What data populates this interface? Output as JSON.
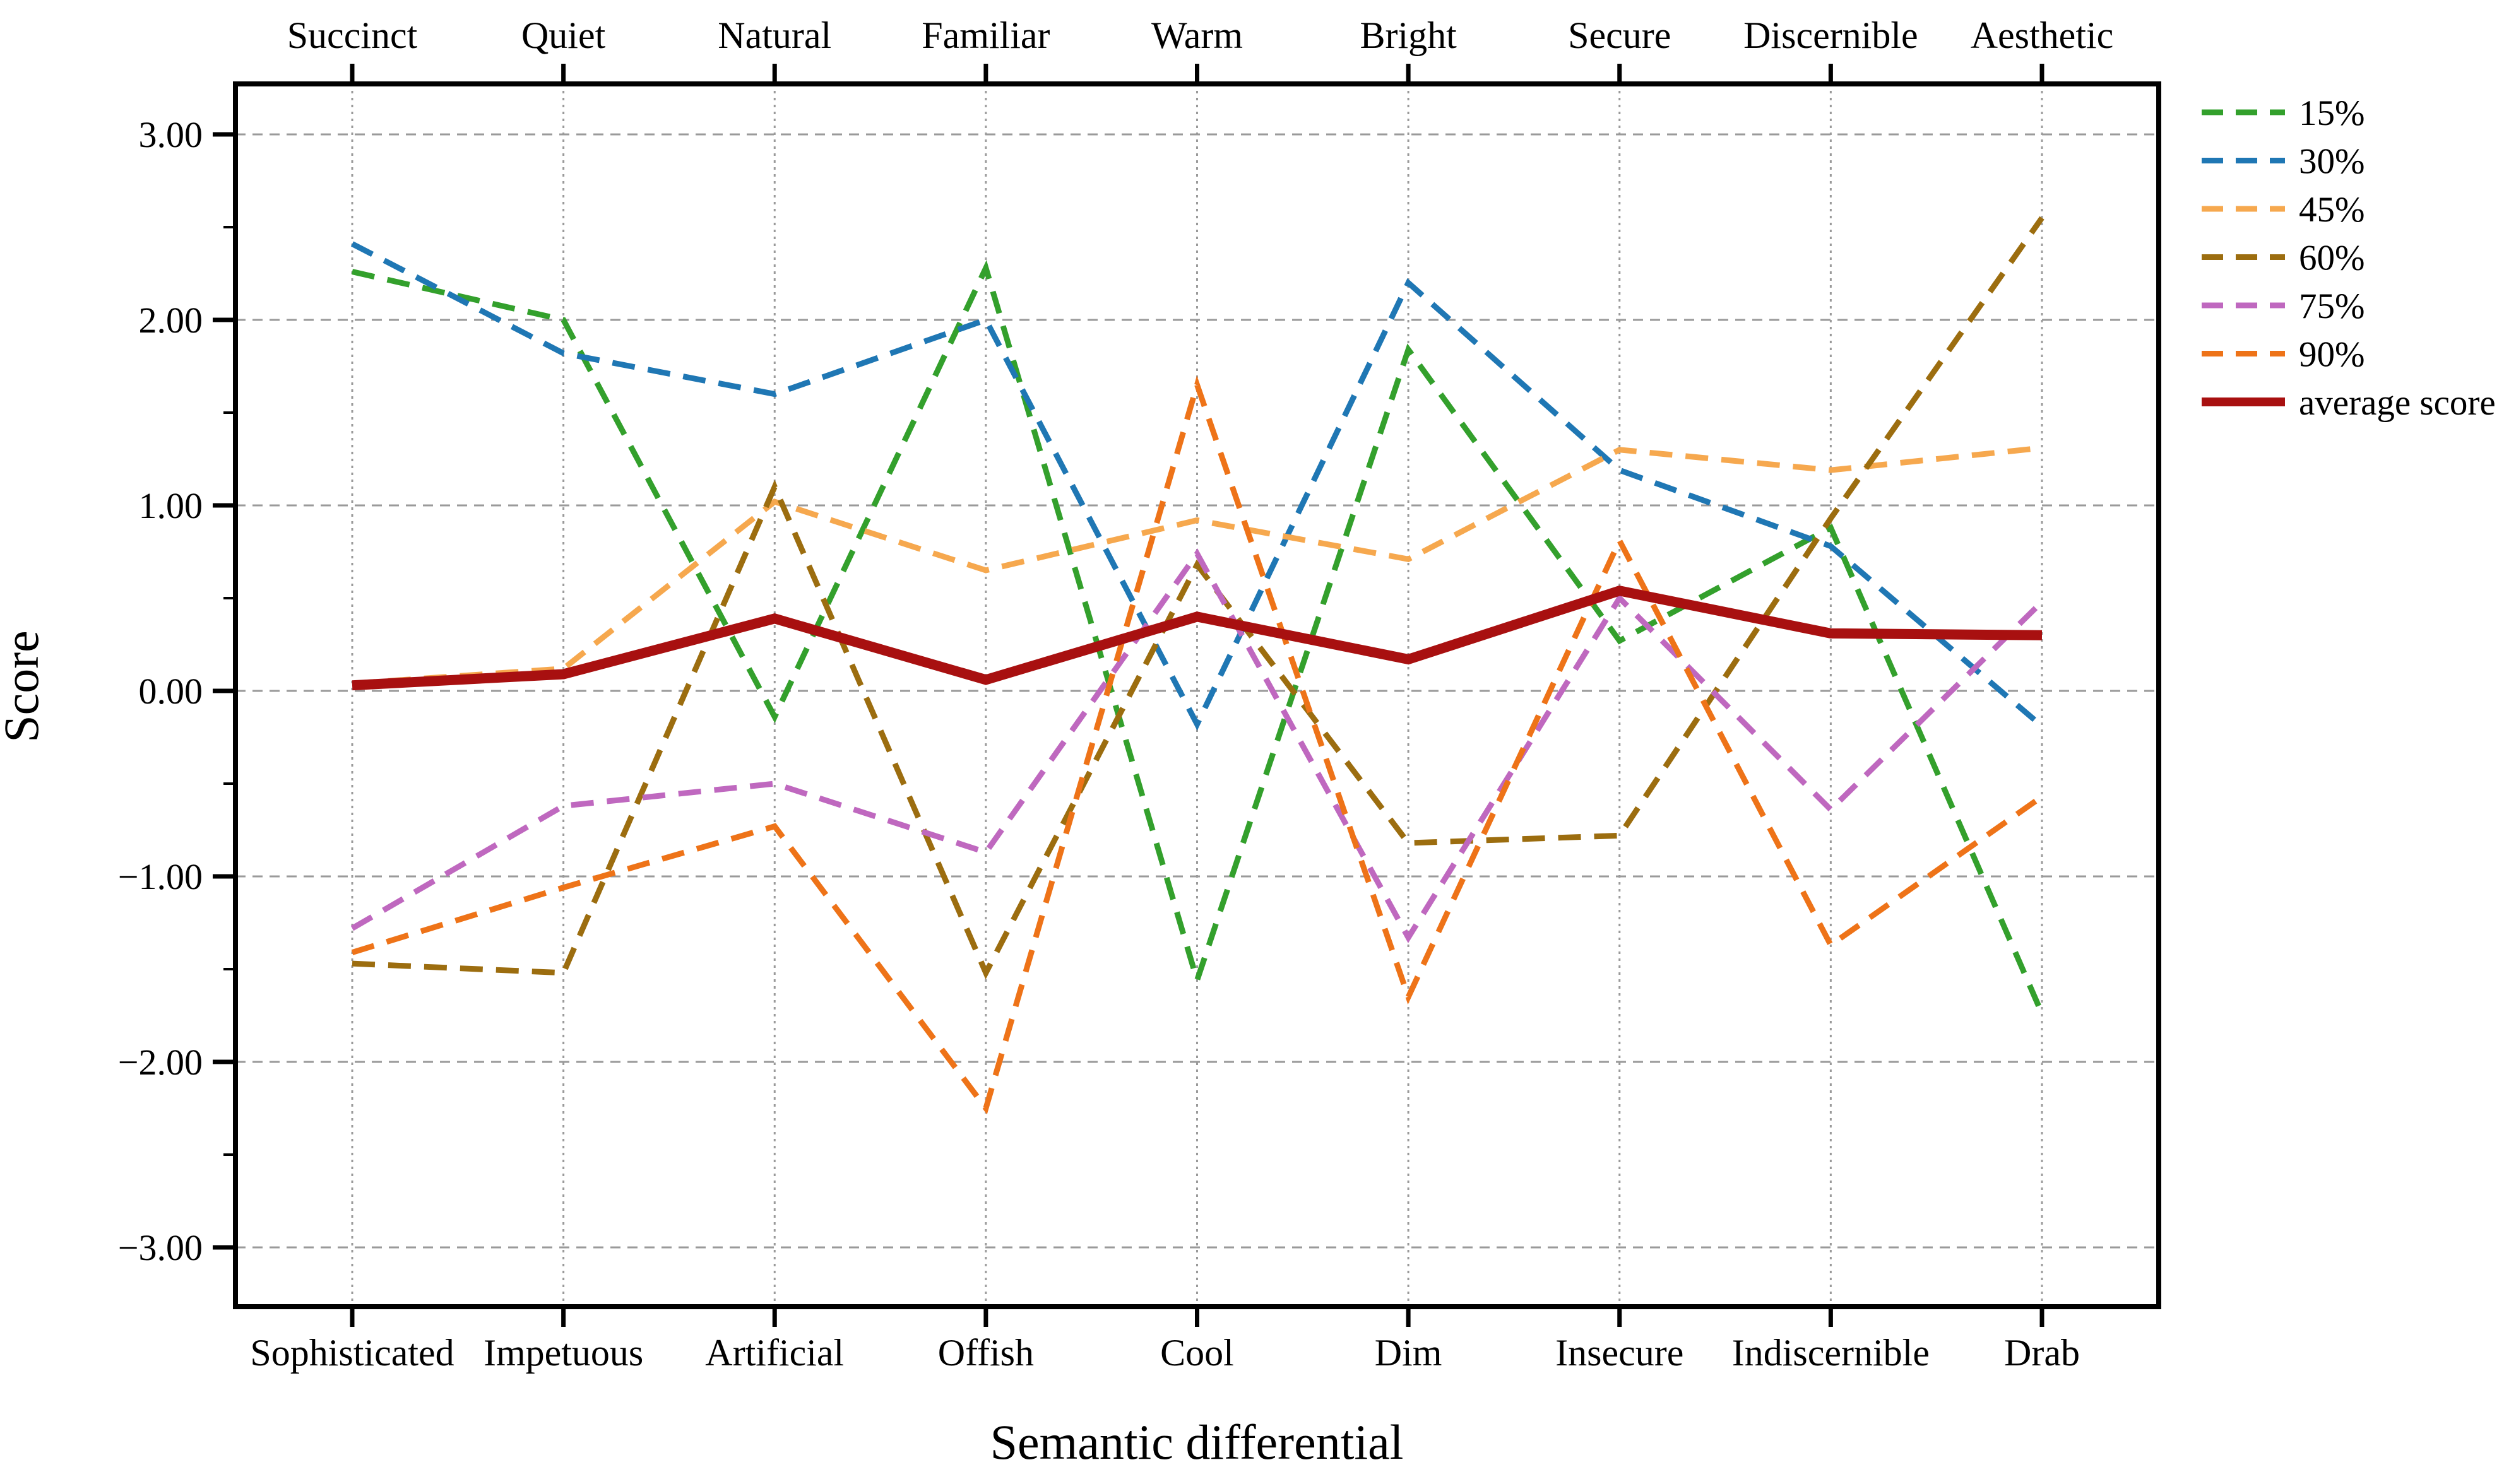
{
  "chart_data": {
    "type": "line",
    "title": "",
    "xlabel": "Semantic differential",
    "ylabel": "Score",
    "categories_top": [
      "Succinct",
      "Quiet",
      "Natural",
      "Familiar",
      "Warm",
      "Bright",
      "Secure",
      "Discernible",
      "Aesthetic"
    ],
    "categories_bottom": [
      "Sophisticated",
      "Impetuous",
      "Artificial",
      "Offish",
      "Cool",
      "Dim",
      "Insecure",
      "Indiscernible",
      "Drab"
    ],
    "ylim": [
      -3.3,
      3.3
    ],
    "yticks": [
      {
        "value": 3,
        "label": "3.00"
      },
      {
        "value": 2,
        "label": "2.00"
      },
      {
        "value": 1,
        "label": "1.00"
      },
      {
        "value": 0,
        "label": "0.00"
      },
      {
        "value": -1,
        "label": "−1.00"
      },
      {
        "value": -2,
        "label": "−2.00"
      },
      {
        "value": -3,
        "label": "−3.00"
      }
    ],
    "yminor_step": 0.5,
    "grid": {
      "horizontal": true,
      "vertical": true,
      "color": "#9a9a9a"
    },
    "legend_position": "upper-right-outside",
    "frame_color": "#000000",
    "series": [
      {
        "name": "15%",
        "color": "#33a02c",
        "style": "dashed",
        "values": [
          2.26,
          2.0,
          -0.14,
          2.28,
          -1.56,
          1.84,
          0.27,
          0.88,
          -1.74
        ]
      },
      {
        "name": "30%",
        "color": "#1f77b4",
        "style": "dashed",
        "values": [
          2.41,
          1.82,
          1.6,
          2.0,
          -0.18,
          2.2,
          1.19,
          0.78,
          -0.19
        ]
      },
      {
        "name": "45%",
        "color": "#f6a84e",
        "style": "dashed",
        "values": [
          0.04,
          0.12,
          1.02,
          0.65,
          0.92,
          0.71,
          1.3,
          1.19,
          1.31
        ]
      },
      {
        "name": "60%",
        "color": "#9c6d0f",
        "style": "dashed",
        "values": [
          -1.47,
          -1.52,
          1.1,
          -1.52,
          0.68,
          -0.82,
          -0.78,
          0.93,
          2.55
        ]
      },
      {
        "name": "75%",
        "color": "#bf68bf",
        "style": "dashed",
        "values": [
          -1.28,
          -0.62,
          -0.5,
          -0.87,
          0.74,
          -1.33,
          0.5,
          -0.64,
          0.48
        ]
      },
      {
        "name": "90%",
        "color": "#ee7318",
        "style": "dashed",
        "values": [
          -1.41,
          -1.06,
          -0.73,
          -2.25,
          1.65,
          -1.65,
          0.81,
          -1.37,
          -0.57
        ]
      },
      {
        "name": "average score",
        "color": "#a81010",
        "style": "solid",
        "values": [
          0.03,
          0.09,
          0.39,
          0.06,
          0.4,
          0.17,
          0.54,
          0.31,
          0.3
        ]
      }
    ]
  }
}
